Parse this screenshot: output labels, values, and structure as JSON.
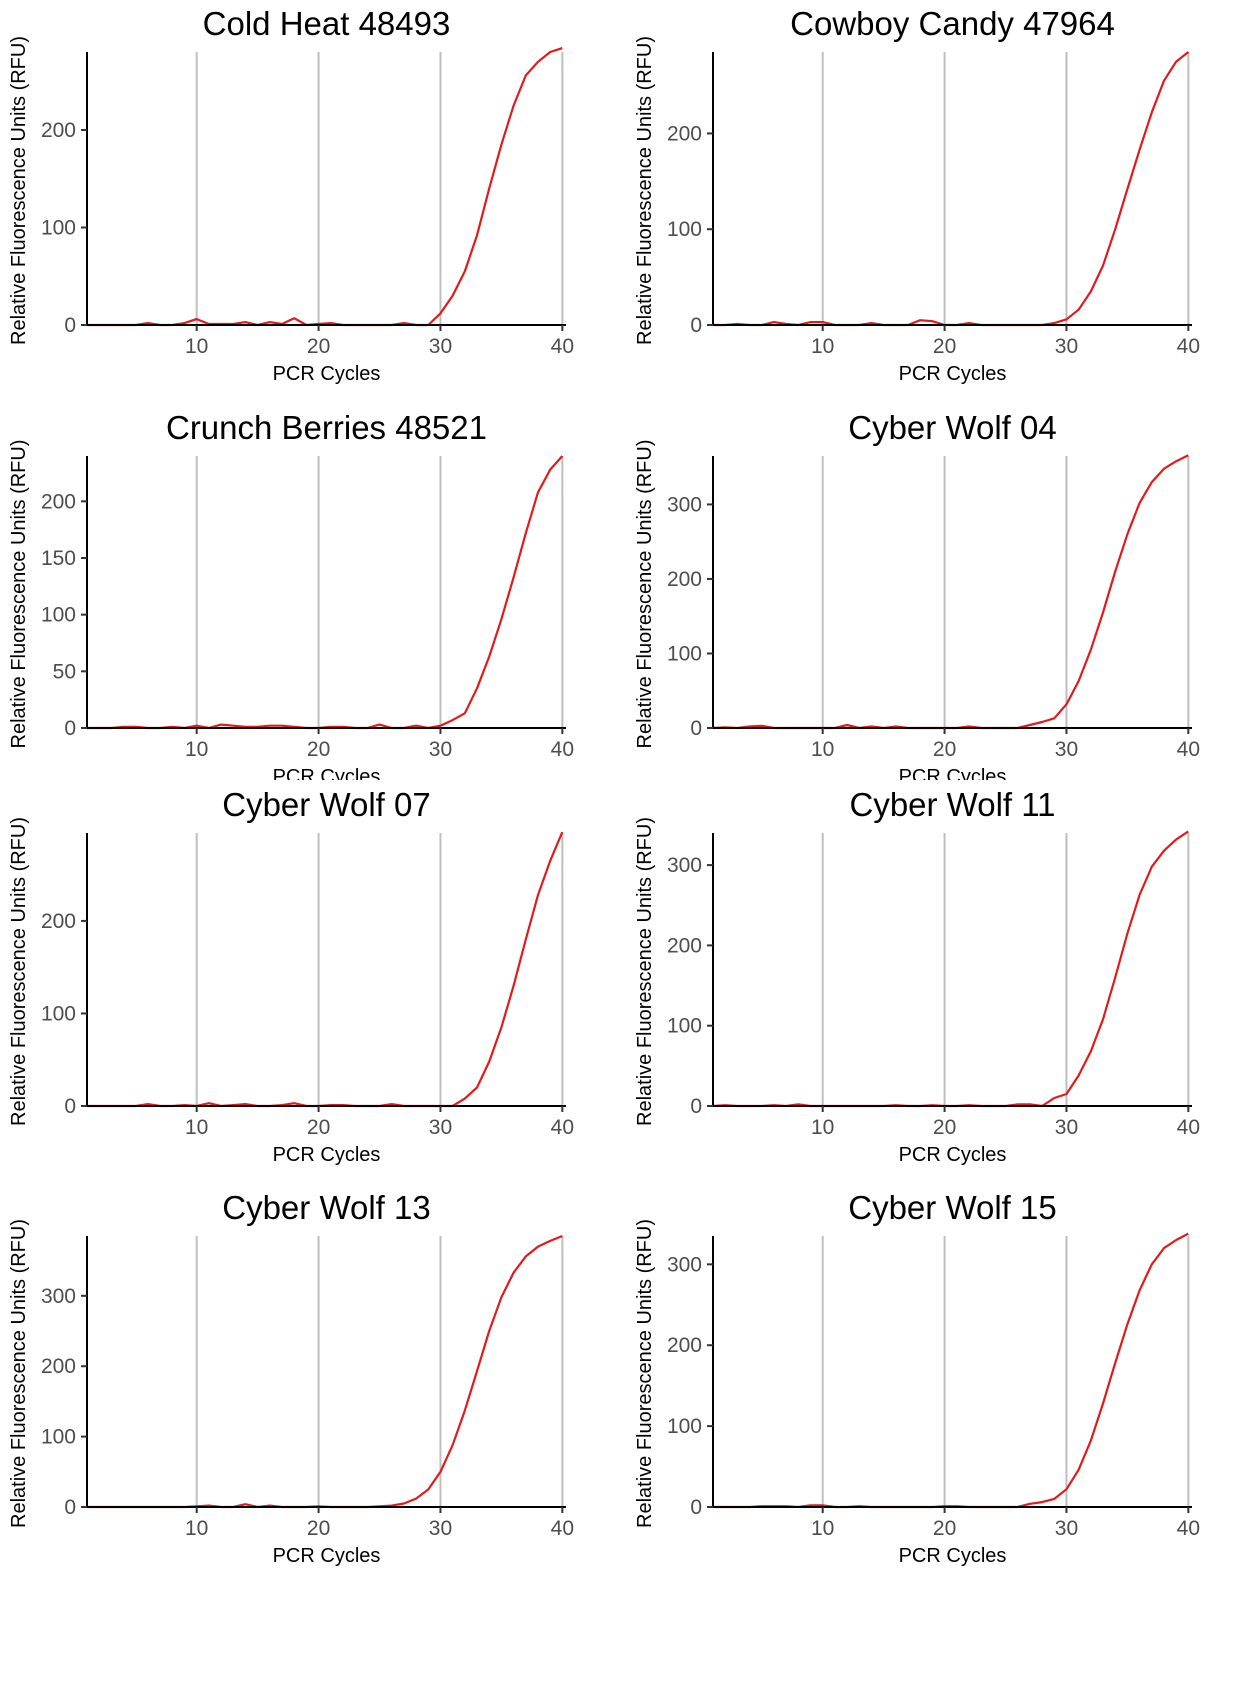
{
  "chart_data": [
    {
      "type": "line",
      "title": "Cold Heat 48493",
      "xlabel": "PCR Cycles",
      "ylabel": "Relative Fluorescence Units (RFU)",
      "xlim": [
        1,
        40.3
      ],
      "ylim": [
        0,
        280
      ],
      "xticks": [
        10,
        20,
        30,
        40
      ],
      "yticks": [
        0,
        100,
        200
      ],
      "vlines": [
        10,
        20,
        30,
        40
      ],
      "series": [
        {
          "x": [
            1,
            2,
            3,
            4,
            5,
            6,
            7,
            8,
            9,
            10,
            11,
            12,
            13,
            14,
            15,
            16,
            17,
            18,
            19,
            20,
            21,
            22,
            23,
            24,
            25,
            26,
            27,
            28,
            29,
            30,
            31,
            32,
            33,
            34,
            35,
            36,
            37,
            38,
            39,
            40
          ],
          "y": [
            0,
            0,
            0,
            0,
            0,
            2,
            0,
            0,
            2,
            6,
            1,
            1,
            1,
            3,
            0,
            3,
            1,
            7,
            0,
            1,
            2,
            0,
            0,
            0,
            0,
            0,
            2,
            0,
            0,
            12,
            30,
            55,
            92,
            140,
            185,
            225,
            256,
            270,
            280,
            284
          ]
        }
      ]
    },
    {
      "type": "line",
      "title": "Cowboy Candy 47964",
      "xlabel": "PCR Cycles",
      "ylabel": "Relative Fluorescence Units (RFU)",
      "xlim": [
        1,
        40.3
      ],
      "ylim": [
        0,
        285
      ],
      "xticks": [
        10,
        20,
        30,
        40
      ],
      "yticks": [
        0,
        100,
        200
      ],
      "vlines": [
        10,
        20,
        30,
        40
      ],
      "series": [
        {
          "x": [
            1,
            2,
            3,
            4,
            5,
            6,
            7,
            8,
            9,
            10,
            11,
            12,
            13,
            14,
            15,
            16,
            17,
            18,
            19,
            20,
            21,
            22,
            23,
            24,
            25,
            26,
            27,
            28,
            29,
            30,
            31,
            32,
            33,
            34,
            35,
            36,
            37,
            38,
            39,
            40
          ],
          "y": [
            0,
            0,
            1,
            0,
            0,
            3,
            1,
            0,
            3,
            3,
            0,
            0,
            0,
            2,
            0,
            0,
            0,
            5,
            4,
            0,
            0,
            2,
            0,
            0,
            0,
            0,
            0,
            0,
            2,
            6,
            16,
            35,
            62,
            100,
            142,
            183,
            222,
            255,
            275,
            285
          ]
        }
      ]
    },
    {
      "type": "line",
      "title": "Crunch Berries 48521",
      "xlabel": "PCR Cycles",
      "ylabel": "Relative Fluorescence Units (RFU)",
      "xlim": [
        1,
        40.3
      ],
      "ylim": [
        0,
        240
      ],
      "xticks": [
        10,
        20,
        30,
        40
      ],
      "yticks": [
        0,
        50,
        100,
        150,
        200
      ],
      "vlines": [
        10,
        20,
        30,
        40
      ],
      "series": [
        {
          "x": [
            1,
            2,
            3,
            4,
            5,
            6,
            7,
            8,
            9,
            10,
            11,
            12,
            13,
            14,
            15,
            16,
            17,
            18,
            19,
            20,
            21,
            22,
            23,
            24,
            25,
            26,
            27,
            28,
            29,
            30,
            31,
            32,
            33,
            34,
            35,
            36,
            37,
            38,
            39,
            40
          ],
          "y": [
            0,
            0,
            0,
            1,
            1,
            0,
            0,
            1,
            0,
            2,
            0,
            3,
            2,
            1,
            1,
            2,
            2,
            1,
            0,
            0,
            1,
            1,
            0,
            0,
            3,
            0,
            0,
            2,
            0,
            2,
            7,
            13,
            35,
            63,
            96,
            133,
            172,
            208,
            228,
            240
          ]
        }
      ]
    },
    {
      "type": "line",
      "title": "Cyber Wolf 04",
      "xlabel": "PCR Cycles",
      "ylabel": "Relative Fluorescence Units (RFU)",
      "xlim": [
        1,
        40.3
      ],
      "ylim": [
        0,
        365
      ],
      "xticks": [
        10,
        20,
        30,
        40
      ],
      "yticks": [
        0,
        100,
        200,
        300
      ],
      "vlines": [
        10,
        20,
        30,
        40
      ],
      "series": [
        {
          "x": [
            1,
            2,
            3,
            4,
            5,
            6,
            7,
            8,
            9,
            10,
            11,
            12,
            13,
            14,
            15,
            16,
            17,
            18,
            19,
            20,
            21,
            22,
            23,
            24,
            25,
            26,
            27,
            28,
            29,
            30,
            31,
            32,
            33,
            34,
            35,
            36,
            37,
            38,
            39,
            40
          ],
          "y": [
            0,
            1,
            0,
            2,
            3,
            0,
            0,
            0,
            0,
            0,
            0,
            4,
            0,
            2,
            0,
            2,
            0,
            0,
            0,
            0,
            0,
            2,
            0,
            0,
            0,
            0,
            4,
            8,
            13,
            32,
            63,
            105,
            155,
            210,
            260,
            302,
            330,
            348,
            358,
            366
          ]
        }
      ]
    },
    {
      "type": "line",
      "title": "Cyber Wolf 07",
      "xlabel": "PCR Cycles",
      "ylabel": "Relative Fluorescence Units (RFU)",
      "xlim": [
        1,
        40.3
      ],
      "ylim": [
        0,
        295
      ],
      "xticks": [
        10,
        20,
        30,
        40
      ],
      "yticks": [
        0,
        100,
        200
      ],
      "vlines": [
        10,
        20,
        30,
        40
      ],
      "series": [
        {
          "x": [
            1,
            2,
            3,
            4,
            5,
            6,
            7,
            8,
            9,
            10,
            11,
            12,
            13,
            14,
            15,
            16,
            17,
            18,
            19,
            20,
            21,
            22,
            23,
            24,
            25,
            26,
            27,
            28,
            29,
            30,
            31,
            32,
            33,
            34,
            35,
            36,
            37,
            38,
            39,
            40
          ],
          "y": [
            0,
            0,
            0,
            0,
            0,
            2,
            0,
            0,
            1,
            0,
            3,
            0,
            1,
            2,
            0,
            0,
            1,
            3,
            0,
            0,
            1,
            1,
            0,
            0,
            0,
            2,
            0,
            0,
            0,
            0,
            0,
            8,
            20,
            48,
            85,
            130,
            180,
            228,
            265,
            296
          ]
        }
      ]
    },
    {
      "type": "line",
      "title": "Cyber Wolf 11",
      "xlabel": "PCR Cycles",
      "ylabel": "Relative Fluorescence Units (RFU)",
      "xlim": [
        1,
        40.3
      ],
      "ylim": [
        0,
        340
      ],
      "xticks": [
        10,
        20,
        30,
        40
      ],
      "yticks": [
        0,
        100,
        200,
        300
      ],
      "vlines": [
        10,
        20,
        30,
        40
      ],
      "series": [
        {
          "x": [
            1,
            2,
            3,
            4,
            5,
            6,
            7,
            8,
            9,
            10,
            11,
            12,
            13,
            14,
            15,
            16,
            17,
            18,
            19,
            20,
            21,
            22,
            23,
            24,
            25,
            26,
            27,
            28,
            29,
            30,
            31,
            32,
            33,
            34,
            35,
            36,
            37,
            38,
            39,
            40
          ],
          "y": [
            0,
            1,
            0,
            0,
            0,
            1,
            0,
            2,
            0,
            0,
            0,
            0,
            0,
            0,
            0,
            1,
            0,
            0,
            1,
            0,
            0,
            1,
            0,
            0,
            0,
            2,
            2,
            0,
            10,
            15,
            38,
            68,
            108,
            160,
            215,
            263,
            298,
            318,
            332,
            342
          ]
        }
      ]
    },
    {
      "type": "line",
      "title": "Cyber Wolf 13",
      "xlabel": "PCR Cycles",
      "ylabel": "Relative Fluorescence Units (RFU)",
      "xlim": [
        1,
        40.3
      ],
      "ylim": [
        0,
        385
      ],
      "xticks": [
        10,
        20,
        30,
        40
      ],
      "yticks": [
        0,
        100,
        200,
        300
      ],
      "vlines": [
        10,
        20,
        30,
        40
      ],
      "series": [
        {
          "x": [
            1,
            2,
            3,
            4,
            5,
            6,
            7,
            8,
            9,
            10,
            11,
            12,
            13,
            14,
            15,
            16,
            17,
            18,
            19,
            20,
            21,
            22,
            23,
            24,
            25,
            26,
            27,
            28,
            29,
            30,
            31,
            32,
            33,
            34,
            35,
            36,
            37,
            38,
            39,
            40
          ],
          "y": [
            0,
            0,
            0,
            0,
            0,
            0,
            0,
            0,
            0,
            1,
            2,
            0,
            0,
            4,
            0,
            2,
            0,
            0,
            0,
            1,
            0,
            0,
            0,
            0,
            1,
            2,
            5,
            12,
            25,
            50,
            88,
            137,
            193,
            250,
            298,
            333,
            356,
            370,
            378,
            385
          ]
        }
      ]
    },
    {
      "type": "line",
      "title": "Cyber Wolf 15",
      "xlabel": "PCR Cycles",
      "ylabel": "Relative Fluorescence Units (RFU)",
      "xlim": [
        1,
        40.3
      ],
      "ylim": [
        0,
        335
      ],
      "xticks": [
        10,
        20,
        30,
        40
      ],
      "yticks": [
        0,
        100,
        200,
        300
      ],
      "vlines": [
        10,
        20,
        30,
        40
      ],
      "series": [
        {
          "x": [
            1,
            2,
            3,
            4,
            5,
            6,
            7,
            8,
            9,
            10,
            11,
            12,
            13,
            14,
            15,
            16,
            17,
            18,
            19,
            20,
            21,
            22,
            23,
            24,
            25,
            26,
            27,
            28,
            29,
            30,
            31,
            32,
            33,
            34,
            35,
            36,
            37,
            38,
            39,
            40
          ],
          "y": [
            0,
            0,
            0,
            0,
            1,
            1,
            1,
            0,
            2,
            2,
            0,
            0,
            1,
            0,
            0,
            0,
            0,
            0,
            0,
            1,
            1,
            0,
            0,
            0,
            0,
            0,
            4,
            6,
            10,
            22,
            46,
            82,
            128,
            178,
            226,
            268,
            300,
            320,
            330,
            338
          ]
        }
      ]
    }
  ],
  "style": {
    "line_color": "#e31a1c",
    "grid_color": "#bebebe",
    "axis_color": "#000000",
    "tick_text_color": "#4d4d4d"
  }
}
